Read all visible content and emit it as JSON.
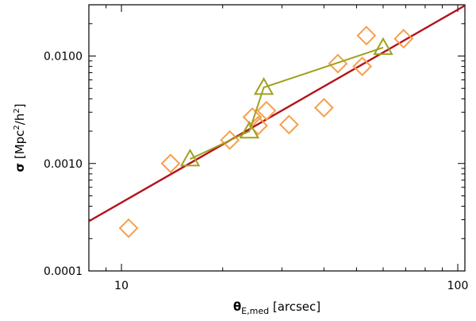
{
  "chart_data": {
    "type": "scatter",
    "title": "",
    "xlabel": "θE,med [arcsec]",
    "ylabel": "σ [Mpc²/h²]",
    "xlabel_parts": {
      "symbol": "θ",
      "subscript": "E,med",
      "unit": " [arcsec]"
    },
    "ylabel_parts": {
      "symbol": "σ",
      "unit_pre": " [Mpc",
      "sup1": "2",
      "mid": "/h",
      "sup2": "2",
      "unit_post": "]"
    },
    "xscale": "log",
    "yscale": "log",
    "xlim": [
      8,
      105
    ],
    "ylim": [
      0.0001,
      0.03
    ],
    "x_major_ticks": [
      10,
      100
    ],
    "x_major_tick_labels": [
      "10",
      "100"
    ],
    "y_major_ticks": [
      0.0001,
      0.001,
      0.01
    ],
    "y_major_tick_labels": [
      "0.0001",
      "0.0010",
      "0.0100"
    ],
    "grid": false,
    "legend": "none",
    "series": [
      {
        "marker": "diamond",
        "color": "#f5a04a",
        "points": [
          {
            "x": 10.5,
            "y": 0.00025
          },
          {
            "x": 14.0,
            "y": 0.001
          },
          {
            "x": 21.0,
            "y": 0.00165
          },
          {
            "x": 24.5,
            "y": 0.0027
          },
          {
            "x": 25.5,
            "y": 0.00225
          },
          {
            "x": 27.0,
            "y": 0.0031
          },
          {
            "x": 31.5,
            "y": 0.0023
          },
          {
            "x": 40.0,
            "y": 0.0033
          },
          {
            "x": 44.0,
            "y": 0.0085
          },
          {
            "x": 52.0,
            "y": 0.008
          },
          {
            "x": 53.5,
            "y": 0.0155
          },
          {
            "x": 69.0,
            "y": 0.0145
          }
        ]
      },
      {
        "marker": "triangle",
        "color": "#a0a020",
        "connected": true,
        "points": [
          {
            "x": 16.0,
            "y": 0.0011
          },
          {
            "x": 24.0,
            "y": 0.002
          },
          {
            "x": 26.5,
            "y": 0.0051
          },
          {
            "x": 60.0,
            "y": 0.012
          }
        ]
      }
    ],
    "fit_line": {
      "color": "#b5121b",
      "x": [
        8,
        105
      ],
      "y": [
        0.00029,
        0.0295
      ]
    }
  }
}
